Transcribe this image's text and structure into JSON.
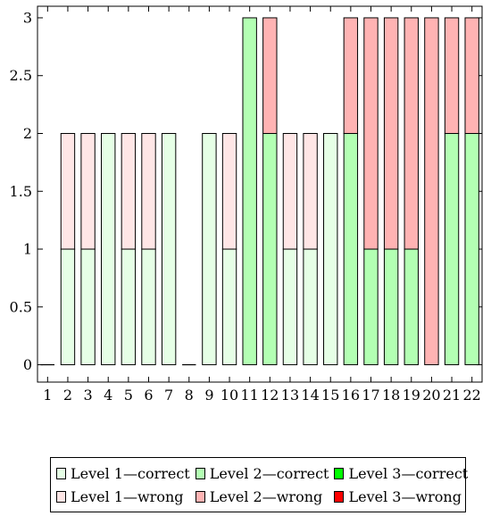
{
  "chart_data": {
    "type": "bar",
    "stacked": true,
    "categories": [
      "1",
      "2",
      "3",
      "4",
      "5",
      "6",
      "7",
      "8",
      "9",
      "10",
      "11",
      "12",
      "13",
      "14",
      "15",
      "16",
      "17",
      "18",
      "19",
      "20",
      "21",
      "22"
    ],
    "series": [
      {
        "name": "Level 1—correct",
        "color": "#e6ffe6",
        "values": [
          0,
          1,
          1,
          2,
          1,
          1,
          2,
          0,
          2,
          1,
          0,
          0,
          1,
          1,
          2,
          0,
          0,
          0,
          0,
          0,
          0,
          0
        ]
      },
      {
        "name": "Level 2—correct",
        "color": "#b3ffb3",
        "values": [
          0,
          0,
          0,
          0,
          0,
          0,
          0,
          0,
          0,
          0,
          3,
          2,
          0,
          0,
          0,
          2,
          1,
          1,
          1,
          0,
          2,
          2
        ]
      },
      {
        "name": "Level 3—correct",
        "color": "#00ff00",
        "values": [
          0,
          0,
          0,
          0,
          0,
          0,
          0,
          0,
          0,
          0,
          0,
          0,
          0,
          0,
          0,
          0,
          0,
          0,
          0,
          0,
          0,
          0
        ]
      },
      {
        "name": "Level 1—wrong",
        "color": "#ffe6e6",
        "values": [
          0,
          1,
          1,
          0,
          1,
          1,
          0,
          0,
          0,
          1,
          0,
          0,
          1,
          1,
          0,
          0,
          0,
          0,
          0,
          0,
          0,
          0
        ]
      },
      {
        "name": "Level 2—wrong",
        "color": "#ffb3b3",
        "values": [
          0,
          0,
          0,
          0,
          0,
          0,
          0,
          0,
          0,
          0,
          0,
          1,
          0,
          0,
          0,
          1,
          2,
          2,
          2,
          3,
          1,
          1
        ]
      },
      {
        "name": "Level 3—wrong",
        "color": "#ff0000",
        "values": [
          0,
          0,
          0,
          0,
          0,
          0,
          0,
          0,
          0,
          0,
          0,
          0,
          0,
          0,
          0,
          0,
          0,
          0,
          0,
          0,
          0,
          0
        ]
      }
    ],
    "ylim": [
      -0.15,
      3.1
    ],
    "yticks": [
      "0",
      "0.5",
      "1",
      "1.5",
      "2",
      "2.5",
      "3"
    ],
    "ytick_values": [
      0,
      0.5,
      1,
      1.5,
      2,
      2.5,
      3
    ],
    "grid": false,
    "legend_position": "bottom"
  }
}
